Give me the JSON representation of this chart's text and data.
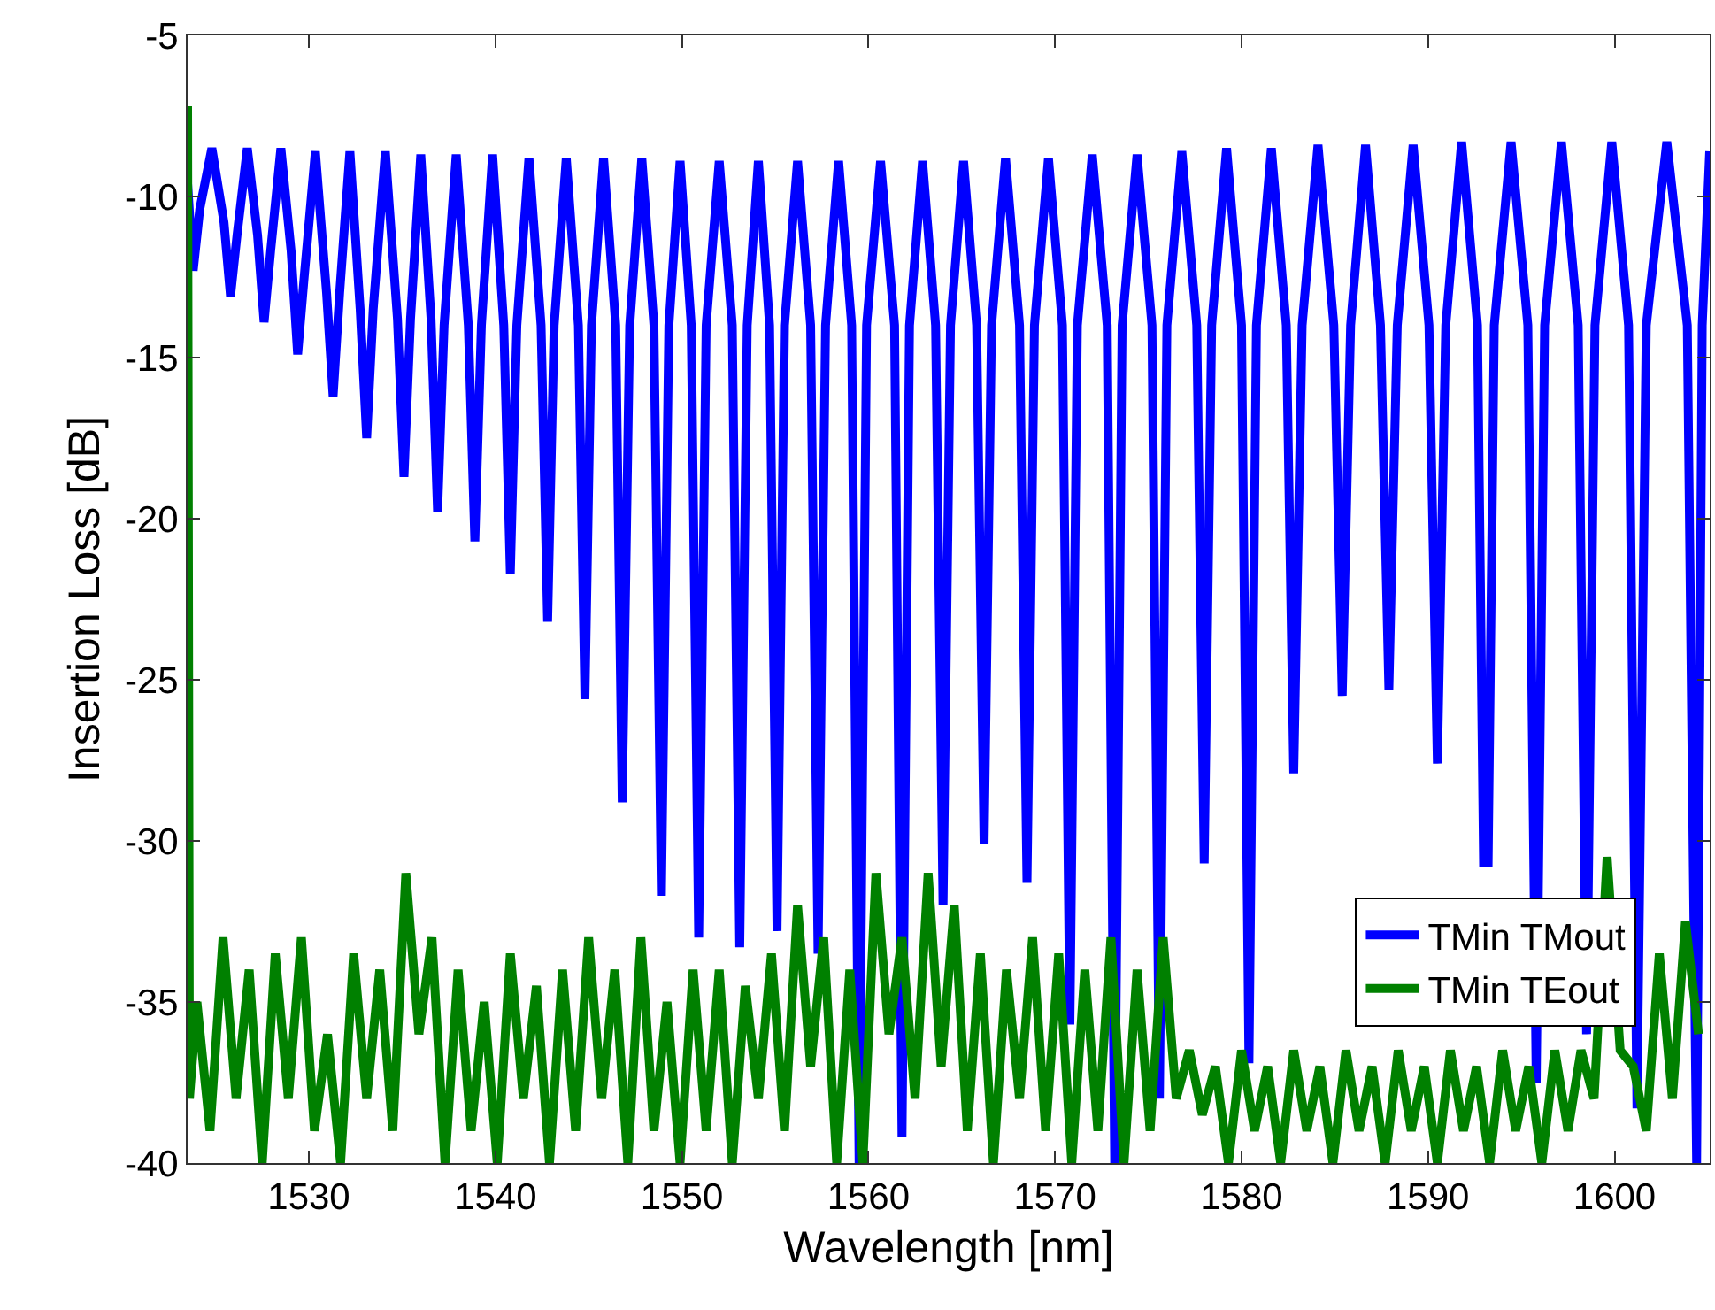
{
  "chart_data": {
    "type": "line",
    "xlabel": "Wavelength [nm]",
    "ylabel": "Insertion Loss [dB]",
    "xlim": [
      1523.5,
      1605.1
    ],
    "xticks": [
      1530,
      1540,
      1550,
      1560,
      1570,
      1580,
      1590,
      1600
    ],
    "ylim": [
      -40,
      -5
    ],
    "yticks": [
      -40,
      -35,
      -30,
      -25,
      -20,
      -15,
      -10,
      -5
    ],
    "grid": false,
    "legend": "bottom right",
    "marker": "none",
    "line_style": "solid",
    "series": [
      {
        "name": "TMin TMout",
        "color": "#0000ff",
        "x": [
          1523.5,
          1523.8,
          1524.15,
          1524.8,
          1525.45,
          1525.8,
          1526.15,
          1526.7,
          1527.25,
          1527.6,
          1527.95,
          1528.5,
          1529.05,
          1529.4,
          1529.75,
          1530.35,
          1530.95,
          1531.3,
          1531.65,
          1532.2,
          1532.75,
          1533.1,
          1533.45,
          1534.1,
          1534.75,
          1535.1,
          1535.45,
          1536,
          1536.55,
          1536.9,
          1537.25,
          1537.9,
          1538.55,
          1538.9,
          1539.25,
          1539.85,
          1540.45,
          1540.8,
          1541.15,
          1541.8,
          1542.45,
          1542.8,
          1543.15,
          1543.8,
          1544.45,
          1544.8,
          1545.15,
          1545.8,
          1546.45,
          1546.8,
          1547.2,
          1547.85,
          1548.5,
          1548.9,
          1549.3,
          1549.9,
          1550.5,
          1550.9,
          1551.3,
          1552,
          1552.7,
          1553.1,
          1553.5,
          1554.1,
          1554.7,
          1555.1,
          1555.5,
          1556.2,
          1556.9,
          1557.3,
          1557.7,
          1558.4,
          1559.1,
          1559.5,
          1559.9,
          1560.65,
          1561.4,
          1561.8,
          1562.2,
          1562.9,
          1563.6,
          1564,
          1564.4,
          1565.1,
          1565.8,
          1566.2,
          1566.6,
          1567.35,
          1568.1,
          1568.5,
          1568.9,
          1569.65,
          1570.4,
          1570.8,
          1571.2,
          1572,
          1572.8,
          1573.2,
          1573.6,
          1574.4,
          1575.2,
          1575.6,
          1576,
          1576.8,
          1577.6,
          1578,
          1578.4,
          1579.2,
          1580,
          1580.4,
          1580.8,
          1581.6,
          1582.4,
          1582.8,
          1583.25,
          1584.1,
          1584.95,
          1585.4,
          1585.85,
          1586.65,
          1587.45,
          1587.9,
          1588.35,
          1589.2,
          1590.05,
          1590.5,
          1590.95,
          1591.8,
          1592.65,
          1592.98,
          1593.1,
          1593.22,
          1593.55,
          1594.45,
          1595.35,
          1595.8,
          1596.25,
          1597.15,
          1598.05,
          1598.5,
          1598.95,
          1599.85,
          1600.75,
          1601.2,
          1601.7,
          1602.8,
          1603.9,
          1604.4,
          1604.7,
          1605.1
        ],
        "values": [
          -9.6,
          -12.3,
          -10.4,
          -8.5,
          -10.8,
          -13.1,
          -11.2,
          -8.5,
          -11.2,
          -13.9,
          -11.7,
          -8.5,
          -11.7,
          -14.9,
          -12.5,
          -8.6,
          -13,
          -16.2,
          -13,
          -8.6,
          -13.5,
          -17.5,
          -13.5,
          -8.6,
          -13.8,
          -18.7,
          -13.8,
          -8.7,
          -13.8,
          -19.8,
          -14,
          -8.7,
          -14,
          -20.7,
          -14,
          -8.7,
          -14,
          -21.7,
          -14,
          -8.8,
          -14,
          -23.2,
          -14,
          -8.8,
          -14,
          -25.6,
          -14,
          -8.8,
          -14,
          -28.8,
          -14,
          -8.8,
          -14,
          -31.7,
          -14,
          -8.9,
          -14,
          -33,
          -14,
          -8.9,
          -14,
          -33.3,
          -14,
          -8.9,
          -14,
          -32.8,
          -14,
          -8.9,
          -14,
          -33.5,
          -14,
          -8.9,
          -14,
          -40,
          -14,
          -8.9,
          -14,
          -39.2,
          -14,
          -8.9,
          -14,
          -32,
          -14,
          -8.9,
          -14,
          -30.1,
          -14,
          -8.8,
          -14,
          -31.3,
          -14,
          -8.8,
          -14,
          -35.7,
          -14,
          -8.7,
          -14,
          -40,
          -14,
          -8.7,
          -14,
          -38,
          -14,
          -8.6,
          -14,
          -30.7,
          -14,
          -8.5,
          -14,
          -36.9,
          -14,
          -8.5,
          -14,
          -27.9,
          -14,
          -8.4,
          -14,
          -25.5,
          -14,
          -8.4,
          -14,
          -25.3,
          -14,
          -8.4,
          -14,
          -27.6,
          -14,
          -8.3,
          -14,
          -30.8,
          null,
          -30.8,
          -14,
          -8.3,
          -14,
          -37.5,
          -14,
          -8.3,
          -14,
          -36,
          -14,
          -8.3,
          -14,
          -38.3,
          -14,
          -8.3,
          -14,
          -40,
          -14,
          -8.6
        ]
      },
      {
        "name": "TMin TEout",
        "color": "#008000",
        "x": [
          1523.5,
          1523.6,
          1524,
          1524.7,
          1525.4,
          1526.1,
          1526.8,
          1527.5,
          1528.2,
          1528.9,
          1529.6,
          1530.3,
          1531,
          1531.7,
          1532.4,
          1533.1,
          1533.8,
          1534.5,
          1535.2,
          1535.9,
          1536.6,
          1537.3,
          1538,
          1538.7,
          1539.4,
          1540.1,
          1540.8,
          1541.5,
          1542.2,
          1542.9,
          1543.6,
          1544.3,
          1545,
          1545.7,
          1546.4,
          1547.1,
          1547.8,
          1548.5,
          1549.2,
          1549.9,
          1550.6,
          1551.3,
          1552,
          1552.7,
          1553.4,
          1554.1,
          1554.8,
          1555.5,
          1556.2,
          1556.9,
          1557.6,
          1558.3,
          1559,
          1559.7,
          1560.4,
          1561.1,
          1561.8,
          1562.5,
          1563.2,
          1563.9,
          1564.6,
          1565.3,
          1566,
          1566.7,
          1567.4,
          1568.1,
          1568.8,
          1569.5,
          1570.2,
          1570.9,
          1571.6,
          1572.3,
          1573,
          1573.7,
          1574.4,
          1575.1,
          1575.8,
          1576.5,
          1577.2,
          1577.9,
          1578.6,
          1579.3,
          1580,
          1580.7,
          1581.4,
          1582.1,
          1582.8,
          1583.5,
          1584.2,
          1584.9,
          1585.6,
          1586.3,
          1587,
          1587.7,
          1588.4,
          1589.1,
          1589.8,
          1590.5,
          1591.2,
          1591.9,
          1592.6,
          1593.3,
          1594,
          1594.7,
          1595.4,
          1596.1,
          1596.8,
          1597.5,
          1598.2,
          1598.9,
          1599.6,
          1600.3,
          1601,
          1601.7,
          1602.4,
          1603.1,
          1603.8,
          1604.5
        ],
        "values": [
          -7.2,
          -38,
          -35,
          -39,
          -33,
          -38,
          -34,
          -40,
          -33.5,
          -38,
          -33,
          -39,
          -36,
          -40,
          -33.5,
          -38,
          -34,
          -39,
          -31,
          -36,
          -33,
          -40,
          -34,
          -39,
          -35,
          -40,
          -33.5,
          -38,
          -34.5,
          -40,
          -34,
          -39,
          -33,
          -38,
          -34,
          -40,
          -33,
          -39,
          -35,
          -40,
          -34,
          -39,
          -34,
          -40,
          -34.5,
          -38,
          -33.5,
          -39,
          -32,
          -37,
          -33,
          -40,
          -34,
          -40,
          -31,
          -36,
          -33,
          -38,
          -31,
          -37,
          -32,
          -39,
          -33.5,
          -40,
          -34,
          -38,
          -33,
          -39,
          -33.5,
          -40,
          -34,
          -39,
          -33,
          -40,
          -34,
          -39,
          -33,
          -38,
          -36.5,
          -38.5,
          -37,
          -40,
          -36.5,
          -39,
          -37,
          -40,
          -36.5,
          -39,
          -37,
          -40,
          -36.5,
          -39,
          -37,
          -40,
          -36.5,
          -39,
          -37,
          -40,
          -36.5,
          -39,
          -37,
          -40,
          -36.5,
          -39,
          -37,
          -40,
          -36.5,
          -39,
          -36.5,
          -38,
          -30.5,
          -36.5,
          -37,
          -39,
          -33.5,
          -38,
          -32.5,
          -36
        ]
      }
    ]
  }
}
